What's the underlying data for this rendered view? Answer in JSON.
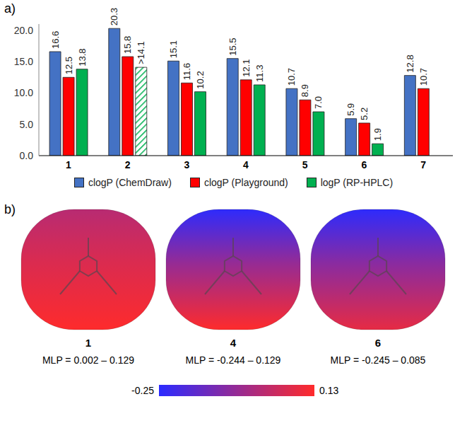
{
  "chart_data": {
    "type": "bar",
    "categories": [
      "1",
      "2",
      "3",
      "4",
      "5",
      "6",
      "7"
    ],
    "series": [
      {
        "name": "clogP (ChemDraw)",
        "color": "#4472c4",
        "values": [
          16.6,
          20.3,
          15.1,
          15.5,
          10.7,
          5.9,
          12.8
        ],
        "value_labels": [
          "16.6",
          "20.3",
          "15.1",
          "15.5",
          "10.7",
          "5.9",
          "12.8"
        ]
      },
      {
        "name": "clogP (Playground)",
        "color": "#ff0000",
        "values": [
          12.5,
          15.8,
          11.6,
          12.1,
          8.9,
          5.2,
          10.7
        ],
        "value_labels": [
          "12.5",
          "15.8",
          "11.6",
          "12.1",
          "8.9",
          "5.2",
          "10.7"
        ]
      },
      {
        "name": "logP (RP-HPLC)",
        "color": "#00b050",
        "values": [
          13.8,
          14.1,
          10.2,
          11.3,
          7.0,
          1.9,
          null
        ],
        "value_labels": [
          "13.8",
          ">14.1",
          "10.2",
          "11.3",
          "7.0",
          "1.9",
          null
        ]
      }
    ],
    "ylim": [
      0,
      21
    ],
    "yticks": [
      {
        "value": 0,
        "label": "0.0"
      },
      {
        "value": 5,
        "label": "5.0"
      },
      {
        "value": 10,
        "label": "10.0"
      },
      {
        "value": 15,
        "label": "15.0"
      },
      {
        "value": 20,
        "label": "20.0"
      }
    ],
    "grid": false,
    "legend": "bottom",
    "data_labels": true
  },
  "figure": {
    "panel_labels": [
      "a)",
      "b)"
    ],
    "surfaces": [
      {
        "label": "1",
        "caption": "MLP = 0.002 – 0.129",
        "mlp_range": [
          0.002,
          0.129
        ]
      },
      {
        "label": "4",
        "caption": "MLP = -0.244 – 0.129",
        "mlp_range": [
          -0.244,
          0.129
        ]
      },
      {
        "label": "6",
        "caption": "MLP = -0.245 – 0.085",
        "mlp_range": [
          -0.245,
          0.085
        ]
      }
    ],
    "colorbar": {
      "range": [
        -0.25,
        0.13
      ],
      "ticks": [
        -0.25,
        0.13
      ],
      "colors": [
        "#2b2bff",
        "#ff2b2b"
      ]
    }
  }
}
